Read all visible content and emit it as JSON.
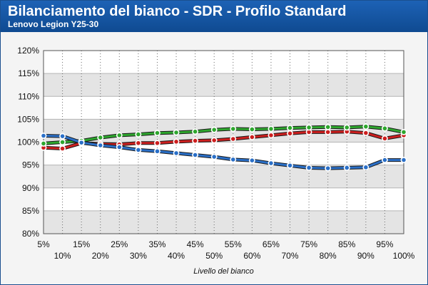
{
  "header": {
    "title": "Bilanciamento del bianco - SDR - Profilo Standard",
    "subtitle": "Lenovo Legion Y25-30"
  },
  "chart_data": {
    "type": "line",
    "xlabel": "Livello del bianco",
    "ylabel": "",
    "categories": [
      "5%",
      "10%",
      "15%",
      "20%",
      "25%",
      "30%",
      "35%",
      "40%",
      "45%",
      "50%",
      "55%",
      "60%",
      "65%",
      "70%",
      "75%",
      "80%",
      "85%",
      "90%",
      "95%",
      "100%"
    ],
    "ylim": [
      80,
      120
    ],
    "yticks": [
      "80%",
      "85%",
      "90%",
      "95%",
      "100%",
      "105%",
      "110%",
      "115%",
      "120%"
    ],
    "grid": true,
    "series": [
      {
        "color": "#cc1f1f",
        "values": [
          98.8,
          98.6,
          99.8,
          99.6,
          99.5,
          99.8,
          99.8,
          100.1,
          100.3,
          100.4,
          100.7,
          101.1,
          101.5,
          101.9,
          102.2,
          102.2,
          102.3,
          102.0,
          100.8,
          101.5
        ]
      },
      {
        "color": "#2ea62e",
        "values": [
          99.7,
          100.0,
          100.3,
          101.0,
          101.5,
          101.7,
          102.0,
          102.1,
          102.3,
          102.7,
          102.9,
          102.8,
          102.9,
          103.1,
          103.2,
          103.3,
          103.2,
          103.4,
          103.0,
          102.2
        ]
      },
      {
        "color": "#2a6fc7",
        "values": [
          101.4,
          101.3,
          99.9,
          99.3,
          98.9,
          98.3,
          98.0,
          97.6,
          97.2,
          96.8,
          96.2,
          96.0,
          95.4,
          94.9,
          94.4,
          94.3,
          94.4,
          94.5,
          96.1,
          96.1
        ]
      }
    ]
  }
}
